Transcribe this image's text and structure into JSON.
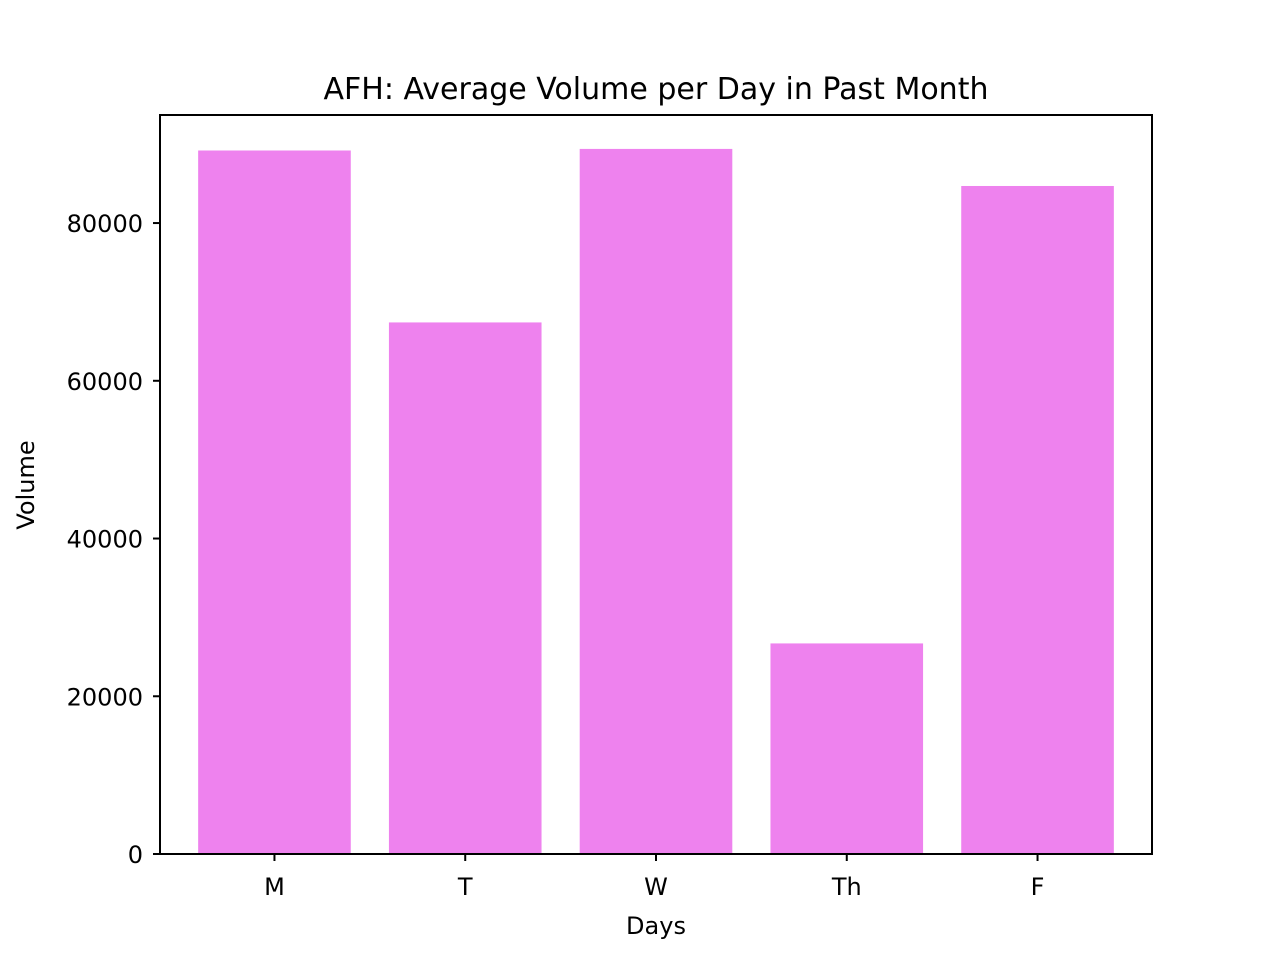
{
  "chart_data": {
    "type": "bar",
    "title": "AFH: Average Volume per Day in Past Month",
    "xlabel": "Days",
    "ylabel": "Volume",
    "categories": [
      "M",
      "T",
      "W",
      "Th",
      "F"
    ],
    "values": [
      89200,
      67400,
      89400,
      26700,
      84700
    ],
    "ylim": [
      0,
      93700
    ],
    "yticks": [
      0,
      20000,
      40000,
      60000,
      80000
    ],
    "ytick_labels": [
      "0",
      "20000",
      "40000",
      "60000",
      "80000"
    ],
    "grid": false,
    "legend": "none",
    "bar_color": "#ee82ee"
  }
}
